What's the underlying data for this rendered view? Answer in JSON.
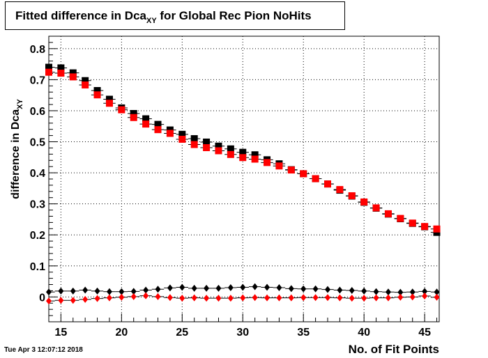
{
  "title": {
    "prefix": "Fitted difference in Dca",
    "subscript": "XY",
    "suffix": " for Global Rec Pion NoHits"
  },
  "timestamp": "Tue Apr  3 12:07:12 2018",
  "colors": {
    "black_series": "#000000",
    "red_series": "#ff0000",
    "grid": "#000000"
  },
  "chart_data": {
    "type": "scatter",
    "title": "Fitted difference in Dca_XY for Global Rec Pion NoHits",
    "xlabel": "No. of Fit Points",
    "ylabel_main": "difference in Dca",
    "ylabel_sub": "XY",
    "xlim": [
      14,
      46.2
    ],
    "ylim": [
      -0.08,
      0.84
    ],
    "xticks": [
      15,
      20,
      25,
      30,
      35,
      40,
      45
    ],
    "yticks": [
      0,
      0.1,
      0.2,
      0.3,
      0.4,
      0.5,
      0.6,
      0.7,
      0.8
    ],
    "ytick_labels": [
      "0",
      "0.1",
      "0.2",
      "0.3",
      "0.4",
      "0.5",
      "0.6",
      "0.7",
      "0.8"
    ],
    "grid": true,
    "x": [
      14,
      15,
      16,
      17,
      18,
      19,
      20,
      21,
      22,
      23,
      24,
      25,
      26,
      27,
      28,
      29,
      30,
      31,
      32,
      33,
      34,
      35,
      36,
      37,
      38,
      39,
      40,
      41,
      42,
      43,
      44,
      45,
      46
    ],
    "series": [
      {
        "marker": "square",
        "color": "#000000",
        "values": [
          0.74,
          0.738,
          0.722,
          0.697,
          0.665,
          0.637,
          0.609,
          0.591,
          0.574,
          0.556,
          0.538,
          0.524,
          0.51,
          0.499,
          0.486,
          0.477,
          0.466,
          0.458,
          0.442,
          0.429,
          0.41,
          0.397,
          0.381,
          0.364,
          0.344,
          0.325,
          0.305,
          0.286,
          0.267,
          0.252,
          0.237,
          0.226,
          0.208
        ]
      },
      {
        "marker": "square",
        "color": "#ff0000",
        "values": [
          0.724,
          0.721,
          0.709,
          0.683,
          0.651,
          0.624,
          0.603,
          0.578,
          0.557,
          0.539,
          0.527,
          0.508,
          0.491,
          0.481,
          0.471,
          0.459,
          0.449,
          0.444,
          0.433,
          0.422,
          0.409,
          0.397,
          0.381,
          0.364,
          0.346,
          0.326,
          0.306,
          0.287,
          0.268,
          0.253,
          0.238,
          0.227,
          0.219
        ]
      },
      {
        "marker": "diamond",
        "color": "#000000",
        "values": [
          0.016,
          0.019,
          0.019,
          0.022,
          0.019,
          0.017,
          0.017,
          0.018,
          0.022,
          0.025,
          0.029,
          0.031,
          0.028,
          0.028,
          0.028,
          0.03,
          0.031,
          0.033,
          0.031,
          0.03,
          0.027,
          0.026,
          0.026,
          0.024,
          0.022,
          0.021,
          0.019,
          0.017,
          0.016,
          0.015,
          0.016,
          0.018,
          0.016
        ]
      },
      {
        "marker": "diamond",
        "color": "#ff0000",
        "values": [
          -0.013,
          -0.011,
          -0.011,
          -0.008,
          -0.005,
          -0.003,
          -0.001,
          0.001,
          0.004,
          0.001,
          -0.002,
          -0.004,
          -0.003,
          -0.004,
          -0.004,
          -0.004,
          -0.003,
          -0.002,
          -0.003,
          -0.003,
          -0.003,
          -0.002,
          -0.002,
          -0.002,
          -0.003,
          -0.004,
          -0.004,
          -0.003,
          -0.003,
          -0.001,
          -0.0,
          0.003,
          -0.001
        ]
      }
    ]
  }
}
